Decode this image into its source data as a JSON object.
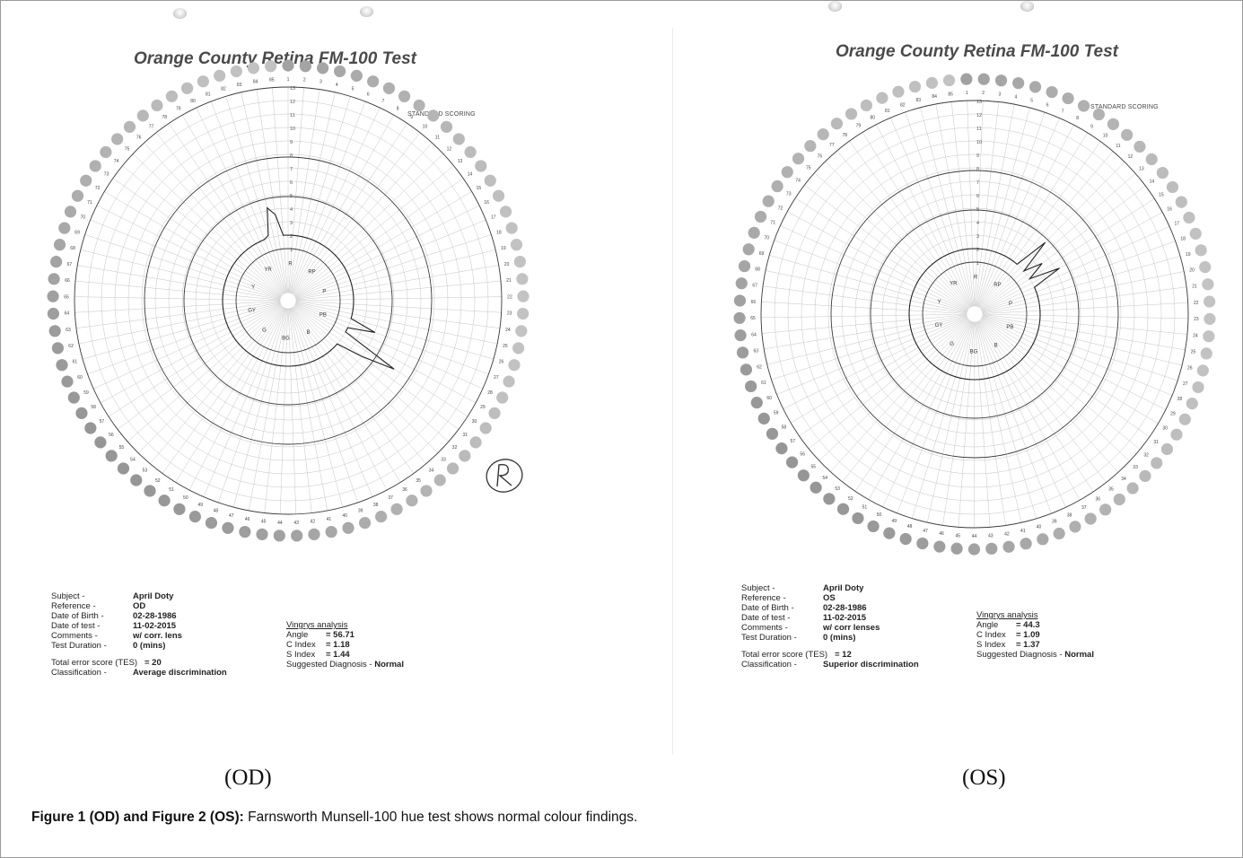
{
  "figure": {
    "caption_bold": "Figure 1 (OD) and Figure 2 (OS):",
    "caption_text": " Farnsworth Munsell-100 hue test shows normal colour findings."
  },
  "panels": [
    {
      "eye_label": "(OD)",
      "sheet_title": "Orange County Retina FM-100 Test",
      "scoring_label": "STANDARD SCORING",
      "hue_labels": [
        "R",
        "RP",
        "P",
        "PB",
        "B",
        "BG",
        "G",
        "GY",
        "Y",
        "YR"
      ],
      "scale_labels": [
        "1",
        "2",
        "3",
        "4",
        "5",
        "6",
        "7",
        "8",
        "9",
        "10",
        "11",
        "12",
        "13"
      ],
      "cap_numbers": [
        "1",
        "2",
        "3",
        "4",
        "5",
        "6",
        "7",
        "8",
        "9",
        "10",
        "11",
        "12",
        "13",
        "14",
        "15",
        "16",
        "17",
        "18",
        "19",
        "20",
        "21",
        "22",
        "23",
        "24",
        "25",
        "26",
        "27",
        "28",
        "29",
        "30",
        "31",
        "32",
        "33",
        "34",
        "35",
        "36",
        "37",
        "38",
        "39",
        "40",
        "41",
        "42",
        "43",
        "44",
        "45",
        "46",
        "47",
        "48",
        "49",
        "50",
        "51",
        "52",
        "53",
        "54",
        "55",
        "56",
        "57",
        "58",
        "59",
        "60",
        "61",
        "62",
        "63",
        "64",
        "65",
        "66",
        "67",
        "68",
        "69",
        "70",
        "71",
        "72",
        "73",
        "74",
        "75",
        "76",
        "77",
        "78",
        "79",
        "80",
        "81",
        "82",
        "83",
        "84",
        "85"
      ],
      "error_scores": [
        2,
        2,
        2,
        2,
        2,
        2,
        2,
        2,
        2,
        2,
        2,
        2,
        2,
        2,
        2,
        2,
        2,
        2,
        2,
        2,
        2,
        2,
        2,
        2,
        2,
        2,
        4,
        2,
        2,
        6.5,
        4,
        2,
        2,
        2,
        2,
        2,
        2,
        2,
        2,
        2,
        2,
        2,
        2,
        2,
        2,
        2,
        2,
        2,
        2,
        2,
        2,
        2,
        2,
        2,
        2,
        2,
        2,
        2,
        2,
        2,
        2,
        2,
        2,
        2,
        2,
        2,
        2,
        2,
        2,
        2,
        2,
        2,
        2,
        2,
        2,
        2,
        2,
        2,
        2,
        2,
        2,
        2.2,
        4.2,
        3.6,
        2
      ],
      "handwritten_mark": "R",
      "subject": {
        "rows": [
          {
            "label": "Subject -",
            "value": "April Doty"
          },
          {
            "label": "Reference -",
            "value": "OD"
          },
          {
            "label": "Date of Birth -",
            "value": "02-28-1986"
          },
          {
            "label": "Date of test -",
            "value": "11-02-2015"
          },
          {
            "label": "Comments -",
            "value": "w/ corr. lens"
          },
          {
            "label": "Test Duration -",
            "value": "0 (mins)"
          }
        ],
        "tes_label": "Total error score (TES)",
        "tes_value": "= 20",
        "class_label": "Classification -",
        "class_value": "Average discrimination"
      },
      "vingrys": {
        "header": "Vingrys analysis",
        "rows": [
          {
            "label": "Angle",
            "value": "= 56.71"
          },
          {
            "label": "C Index",
            "value": "= 1.18"
          },
          {
            "label": "S Index",
            "value": "= 1.44"
          }
        ],
        "diag_label": "Suggested Diagnosis -",
        "diag_value": "Normal"
      }
    },
    {
      "eye_label": "(OS)",
      "sheet_title": "Orange County Retina FM-100 Test",
      "scoring_label": "STANDARD SCORING",
      "hue_labels": [
        "R",
        "RP",
        "P",
        "PB",
        "B",
        "BG",
        "G",
        "GY",
        "Y",
        "YR"
      ],
      "scale_labels": [
        "1",
        "2",
        "3",
        "4",
        "5",
        "6",
        "7",
        "8",
        "9",
        "10",
        "11",
        "12",
        "13"
      ],
      "cap_numbers": [
        "1",
        "2",
        "3",
        "4",
        "5",
        "6",
        "7",
        "8",
        "9",
        "10",
        "11",
        "12",
        "13",
        "14",
        "15",
        "16",
        "17",
        "18",
        "19",
        "20",
        "21",
        "22",
        "23",
        "24",
        "25",
        "26",
        "27",
        "28",
        "29",
        "30",
        "31",
        "32",
        "33",
        "34",
        "35",
        "36",
        "37",
        "38",
        "39",
        "40",
        "41",
        "42",
        "43",
        "44",
        "45",
        "46",
        "47",
        "48",
        "49",
        "50",
        "51",
        "52",
        "53",
        "54",
        "55",
        "56",
        "57",
        "58",
        "59",
        "60",
        "61",
        "62",
        "63",
        "64",
        "65",
        "66",
        "67",
        "68",
        "69",
        "70",
        "71",
        "72",
        "73",
        "74",
        "75",
        "76",
        "77",
        "78",
        "79",
        "80",
        "81",
        "82",
        "83",
        "84",
        "85"
      ],
      "error_scores": [
        2,
        2,
        2,
        2,
        2,
        2,
        2,
        2,
        2,
        2,
        2,
        2,
        2,
        2,
        2,
        2,
        2,
        2,
        2,
        2,
        2,
        2,
        2,
        2,
        2,
        2,
        2,
        2,
        2,
        2,
        2,
        2,
        2,
        2,
        2,
        2,
        2,
        2,
        2,
        2,
        2,
        2,
        2,
        2,
        2,
        2,
        2,
        2,
        2,
        2,
        2,
        2,
        2,
        2,
        2,
        2,
        2,
        2,
        2,
        2,
        2,
        2,
        2,
        2,
        2,
        2,
        2,
        2,
        2,
        2,
        2,
        2,
        2,
        2,
        2,
        2,
        2,
        2,
        2,
        2,
        2,
        2,
        2,
        2,
        2
      ],
      "error_spikes": [
        {
          "cap": 12,
          "score": 4.6
        },
        {
          "cap": 14,
          "score": 3.4
        },
        {
          "cap": 16,
          "score": 4.3
        }
      ],
      "subject": {
        "rows": [
          {
            "label": "Subject -",
            "value": "April Doty"
          },
          {
            "label": "Reference -",
            "value": "OS"
          },
          {
            "label": "Date of Birth -",
            "value": "02-28-1986"
          },
          {
            "label": "Date of test -",
            "value": "11-02-2015"
          },
          {
            "label": "Comments -",
            "value": "w/ corr lenses"
          },
          {
            "label": "Test Duration -",
            "value": "0 (mins)"
          }
        ],
        "tes_label": "Total error score (TES)",
        "tes_value": "= 12",
        "class_label": "Classification -",
        "class_value": "Superior discrimination"
      },
      "vingrys": {
        "header": "Vingrys analysis",
        "rows": [
          {
            "label": "Angle",
            "value": "= 44.3"
          },
          {
            "label": "C Index",
            "value": "= 1.09"
          },
          {
            "label": "S Index",
            "value": "= 1.37"
          }
        ],
        "diag_label": "Suggested Diagnosis -",
        "diag_value": "Normal"
      }
    }
  ],
  "colors": {
    "grid": "#c4c4c4",
    "ring": "#3a3a3a",
    "cap": "#bdbdbd",
    "plot": "#222222"
  }
}
